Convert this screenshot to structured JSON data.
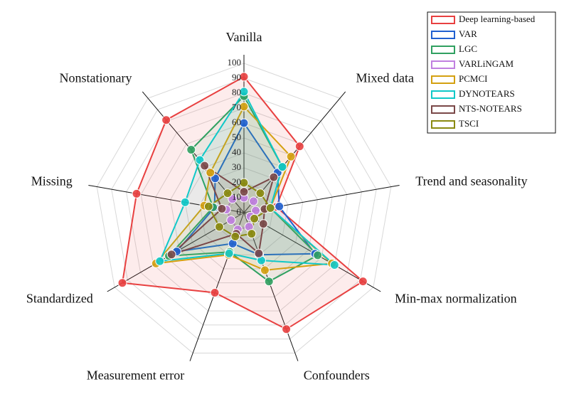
{
  "chart_data": {
    "type": "radar",
    "categories": [
      "Vanilla",
      "Mixed data",
      "Trend and seasonality",
      "Min-max normalization",
      "Confounders",
      "Measurement error",
      "Standardized",
      "Missing",
      "Nonstationary"
    ],
    "ylim": [
      0,
      100
    ],
    "yticks": [
      0,
      10,
      20,
      30,
      40,
      50,
      60,
      70,
      80,
      90,
      100
    ],
    "series": [
      {
        "name": "Deep learning-based",
        "color": "#e84040",
        "values": [
          91,
          58,
          22,
          92,
          83,
          57,
          94,
          73,
          81
        ]
      },
      {
        "name": "VAR",
        "color": "#2060d0",
        "values": [
          60,
          35,
          24,
          55,
          30,
          22,
          52,
          20,
          30
        ]
      },
      {
        "name": "LGC",
        "color": "#30a060",
        "values": [
          78,
          40,
          18,
          57,
          49,
          28,
          58,
          21,
          55
        ]
      },
      {
        "name": "VARLiNGAM",
        "color": "#c080e0",
        "values": [
          10,
          10,
          8,
          5,
          10,
          12,
          10,
          12,
          12
        ]
      },
      {
        "name": "PCMCI",
        "color": "#d4a010",
        "values": [
          71,
          49,
          18,
          68,
          41,
          30,
          68,
          27,
          35
        ]
      },
      {
        "name": "DYNOTEARS",
        "color": "#10c8c8",
        "values": [
          81,
          40,
          18,
          70,
          34,
          29,
          65,
          40,
          46
        ]
      },
      {
        "name": "NTS-NOTEARS",
        "color": "#7a4848",
        "values": [
          14,
          31,
          14,
          15,
          29,
          15,
          56,
          15,
          41
        ]
      },
      {
        "name": "TSCI",
        "color": "#8a8a10",
        "values": [
          20,
          17,
          18,
          8,
          15,
          17,
          19,
          24,
          17
        ]
      }
    ]
  }
}
